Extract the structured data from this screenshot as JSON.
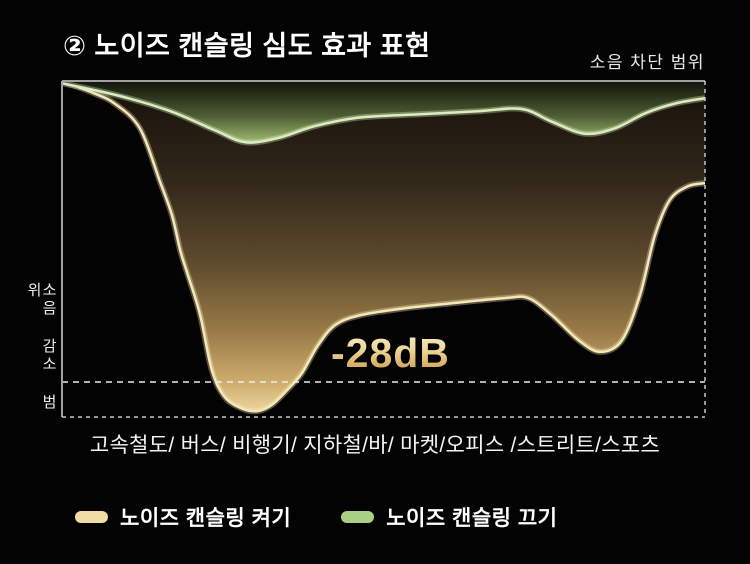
{
  "title": "② 노이즈 캔슬링 심도 효과 표현",
  "labels": {
    "top_right": "소음 차단 범위",
    "left_axis": "소음 감소 범위",
    "x_axis": "고속철도/ 버스/ 비행기/ 지하철/바/ 마켓/오피스 /스트리트/스포츠",
    "annotation": "-28dB"
  },
  "legend": [
    {
      "label": "노이즈 캔슬링 켜기",
      "color": "#f1dba4"
    },
    {
      "label": "노이즈 캔슬링 끄기",
      "color": "#abd084"
    }
  ],
  "colors": {
    "background": "#030303",
    "title_text": "#ffffff",
    "axis_solid_border": "#a0a0a0",
    "axis_dashed_border": "#c8c8c8",
    "reference_line": "#ededed",
    "nc_on_stroke": "#f6e7b8",
    "nc_off_stroke": "#dcecc0",
    "annotation_gold": "#e3c078"
  },
  "chart_data": {
    "type": "area",
    "title": "노이즈 캔슬링 심도 효과 표현",
    "xlabel": "고속철도/ 버스/ 비행기/ 지하철/바/ 마켓/오피스 /스트리트/스포츠",
    "x_categories": [
      "고속철도",
      "버스",
      "비행기",
      "지하철",
      "바",
      "마켓",
      "오피스",
      "스트리트",
      "스포츠"
    ],
    "ylabel": "소음 감소 범위 (dB)",
    "y_unit": "dB",
    "y_range": [
      -31.3,
      0
    ],
    "grid": false,
    "legend_position": "bottom",
    "reference_line": {
      "value": -28,
      "label": "-28dB",
      "style": "dashed"
    },
    "series": [
      {
        "name": "노이즈 캔슬링 켜기",
        "stroke": "#f6e7b8",
        "points": [
          [
            0.0,
            0.0
          ],
          [
            0.048,
            -1.1
          ],
          [
            0.082,
            -2.1
          ],
          [
            0.121,
            -4.4
          ],
          [
            0.152,
            -9.3
          ],
          [
            0.171,
            -12.5
          ],
          [
            0.184,
            -15.8
          ],
          [
            0.196,
            -18.1
          ],
          [
            0.215,
            -21.8
          ],
          [
            0.233,
            -26.9
          ],
          [
            0.253,
            -29.4
          ],
          [
            0.281,
            -30.5
          ],
          [
            0.305,
            -30.7
          ],
          [
            0.327,
            -30.1
          ],
          [
            0.351,
            -28.7
          ],
          [
            0.373,
            -27.2
          ],
          [
            0.398,
            -24.6
          ],
          [
            0.425,
            -22.7
          ],
          [
            0.463,
            -21.8
          ],
          [
            0.526,
            -21.2
          ],
          [
            0.603,
            -20.7
          ],
          [
            0.689,
            -20.2
          ],
          [
            0.725,
            -20.2
          ],
          [
            0.762,
            -21.8
          ],
          [
            0.803,
            -24.1
          ],
          [
            0.837,
            -25.2
          ],
          [
            0.871,
            -24.1
          ],
          [
            0.899,
            -19.9
          ],
          [
            0.922,
            -14.4
          ],
          [
            0.945,
            -11.1
          ],
          [
            0.973,
            -9.8
          ],
          [
            1.0,
            -9.5
          ]
        ]
      },
      {
        "name": "노이즈 캔슬링 끄기",
        "stroke": "#dcecc0",
        "points": [
          [
            0.0,
            -0.2
          ],
          [
            0.09,
            -1.4
          ],
          [
            0.168,
            -2.8
          ],
          [
            0.238,
            -4.6
          ],
          [
            0.285,
            -5.7
          ],
          [
            0.336,
            -5.3
          ],
          [
            0.393,
            -4.2
          ],
          [
            0.463,
            -3.4
          ],
          [
            0.557,
            -3.1
          ],
          [
            0.65,
            -2.8
          ],
          [
            0.715,
            -2.6
          ],
          [
            0.762,
            -3.8
          ],
          [
            0.813,
            -4.9
          ],
          [
            0.86,
            -4.4
          ],
          [
            0.907,
            -3.0
          ],
          [
            0.953,
            -2.1
          ],
          [
            1.0,
            -1.6
          ]
        ]
      }
    ]
  }
}
